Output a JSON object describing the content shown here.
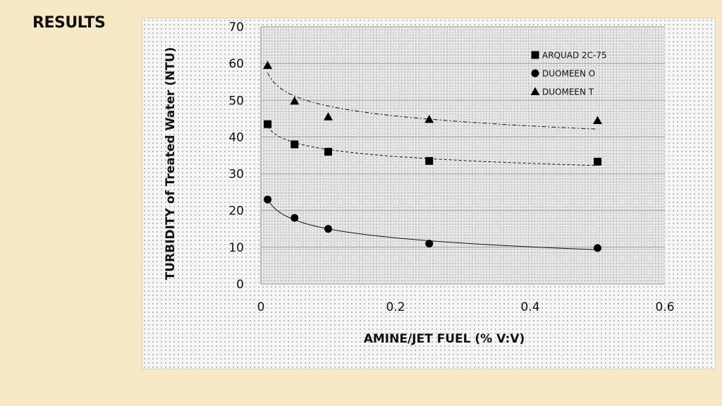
{
  "slide": {
    "title": "RESULTS"
  },
  "chart_data": {
    "type": "scatter",
    "xlabel": "AMINE/JET FUEL (% V:V)",
    "ylabel": "TURBIDITY  of  Treated Water (NTU)",
    "xlim": [
      0,
      0.6
    ],
    "ylim": [
      0,
      70
    ],
    "xticks": [
      "0",
      "0.2",
      "0.4",
      "0.6"
    ],
    "yticks": [
      "0",
      "10",
      "20",
      "30",
      "40",
      "50",
      "60",
      "70"
    ],
    "grid": "y-major",
    "legend_position": "top-right",
    "series": [
      {
        "name": "ARQUAD 2C-75",
        "marker": "square",
        "trendline": "dashed",
        "x": [
          0.01,
          0.05,
          0.1,
          0.25,
          0.5
        ],
        "y": [
          43.5,
          38,
          36,
          33.5,
          33.3
        ]
      },
      {
        "name": "DUOMEEN O",
        "marker": "circle",
        "trendline": "solid",
        "x": [
          0.01,
          0.05,
          0.1,
          0.25,
          0.5
        ],
        "y": [
          23,
          18,
          15,
          11,
          9.8
        ]
      },
      {
        "name": "DUOMEEN T",
        "marker": "triangle",
        "trendline": "dash-dot",
        "x": [
          0.01,
          0.05,
          0.1,
          0.25,
          0.5
        ],
        "y": [
          59.5,
          49.8,
          45.5,
          44.8,
          44.5
        ]
      }
    ]
  }
}
